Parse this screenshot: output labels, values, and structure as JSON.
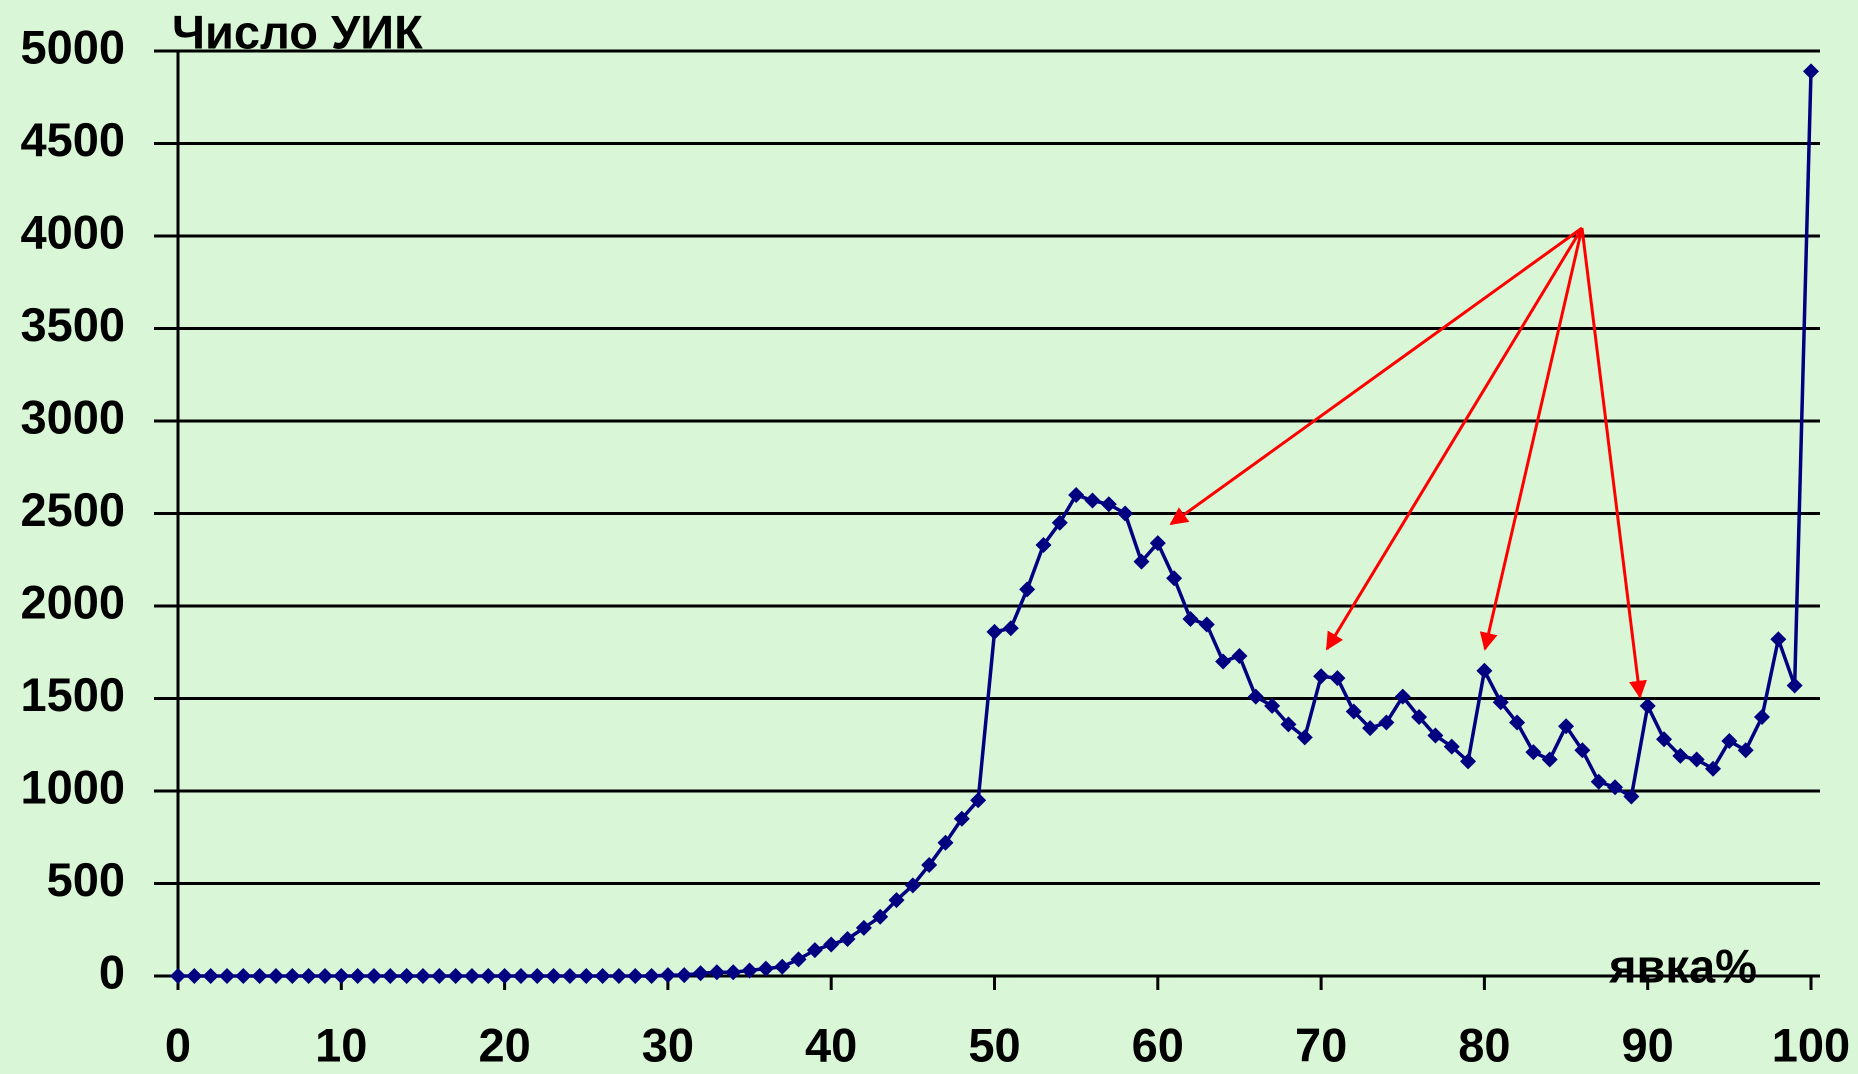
{
  "chart_data": {
    "type": "line",
    "ylabel": "Число УИК",
    "xlabel": "явка%",
    "x": [
      0,
      1,
      2,
      3,
      4,
      5,
      6,
      7,
      8,
      9,
      10,
      11,
      12,
      13,
      14,
      15,
      16,
      17,
      18,
      19,
      20,
      21,
      22,
      23,
      24,
      25,
      26,
      27,
      28,
      29,
      30,
      31,
      32,
      33,
      34,
      35,
      36,
      37,
      38,
      39,
      40,
      41,
      42,
      43,
      44,
      45,
      46,
      47,
      48,
      49,
      50,
      51,
      52,
      53,
      54,
      55,
      56,
      57,
      58,
      59,
      60,
      61,
      62,
      63,
      64,
      65,
      66,
      67,
      68,
      69,
      70,
      71,
      72,
      73,
      74,
      75,
      76,
      77,
      78,
      79,
      80,
      81,
      82,
      83,
      84,
      85,
      86,
      87,
      88,
      89,
      90,
      91,
      92,
      93,
      94,
      95,
      96,
      97,
      98,
      99,
      100
    ],
    "series": [
      {
        "name": "Число УИК",
        "color": "#000080",
        "values": [
          0,
          0,
          0,
          0,
          0,
          0,
          0,
          0,
          0,
          0,
          0,
          0,
          0,
          0,
          0,
          0,
          0,
          0,
          0,
          0,
          0,
          0,
          0,
          0,
          0,
          0,
          0,
          0,
          0,
          0,
          5,
          5,
          15,
          20,
          20,
          30,
          40,
          50,
          90,
          140,
          170,
          200,
          260,
          320,
          410,
          490,
          600,
          720,
          850,
          950,
          1860,
          1880,
          2090,
          2330,
          2450,
          2600,
          2570,
          2550,
          2500,
          2240,
          2340,
          2150,
          1930,
          1900,
          1700,
          1730,
          1510,
          1460,
          1360,
          1290,
          1620,
          1610,
          1430,
          1340,
          1370,
          1510,
          1400,
          1300,
          1240,
          1160,
          1650,
          1480,
          1370,
          1210,
          1170,
          1350,
          1220,
          1050,
          1020,
          970,
          1460,
          1280,
          1190,
          1170,
          1120,
          1270,
          1220,
          1400,
          1820,
          1570,
          4890
        ]
      }
    ],
    "xlim": [
      0,
      100
    ],
    "xticks": [
      0,
      10,
      20,
      30,
      40,
      50,
      60,
      70,
      80,
      90,
      100
    ],
    "ylim": [
      0,
      5000
    ],
    "yticks": [
      0,
      500,
      1000,
      1500,
      2000,
      2500,
      3000,
      3500,
      4000,
      4500,
      5000
    ],
    "grid": true
  }
}
